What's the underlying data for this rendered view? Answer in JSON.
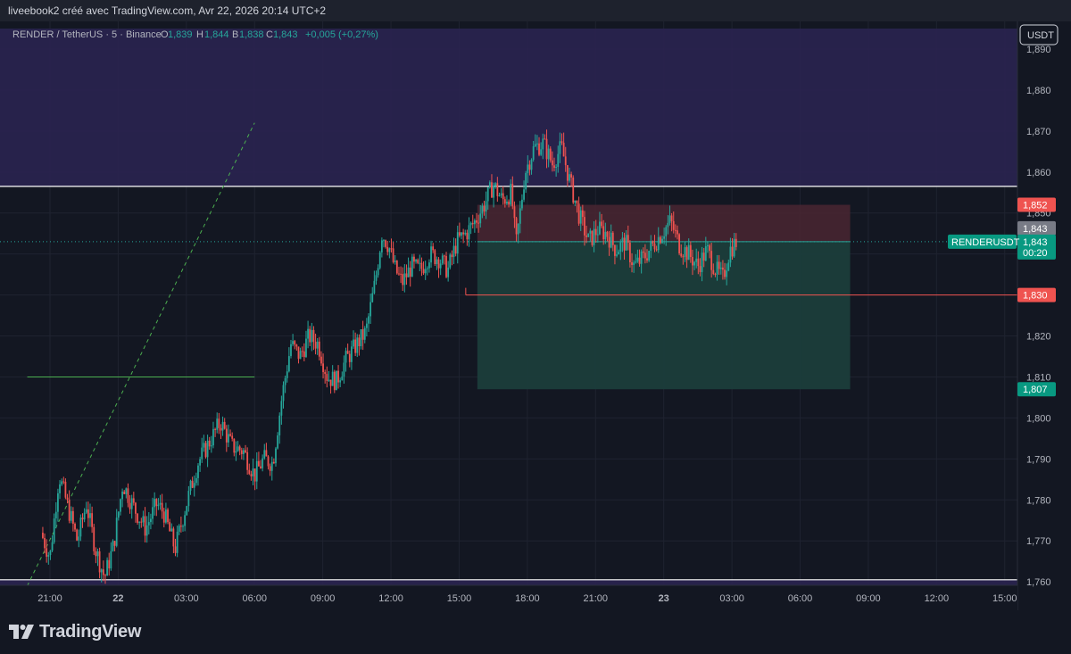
{
  "header": {
    "caption": "liveebook2 créé avec TradingView.com, Avr 22, 2026 20:14 UTC+2"
  },
  "legend": {
    "symbol": "RENDER / TetherUS · 5 · Binance",
    "o_label": "O",
    "o": "1,839",
    "h_label": "H",
    "h": "1,844",
    "b_label": "B",
    "b": "1,838",
    "c_label": "C",
    "c": "1,843",
    "change": "+0,005 (+0,27%)"
  },
  "currency_button": "USDT",
  "brand": "TradingView",
  "colors": {
    "background": "#131722",
    "up": "#26a69a",
    "down": "#ef5350",
    "zone": "#2a2450",
    "stop_box": "#4a2631",
    "target_box": "#1b3d3b"
  },
  "chart_data": {
    "type": "candlestick",
    "symbol": "RENDERUSDT",
    "interval": "5",
    "y_axis": {
      "ticks": [
        1.89,
        1.88,
        1.87,
        1.86,
        1.85,
        1.84,
        1.83,
        1.82,
        1.81,
        1.8,
        1.79,
        1.78,
        1.77,
        1.76
      ],
      "tick_labels": [
        "1,890",
        "1,880",
        "1,870",
        "1,860",
        "1,850",
        "1,840",
        "1,830",
        "1,820",
        "1,810",
        "1,800",
        "1,790",
        "1,780",
        "1,770",
        "1,760"
      ]
    },
    "x_axis": {
      "hours": [
        0,
        3,
        6,
        9,
        12,
        15,
        18,
        21,
        24,
        27,
        30,
        33,
        36,
        39,
        42
      ],
      "labels": [
        "21:00",
        "22",
        "03:00",
        "06:00",
        "09:00",
        "12:00",
        "15:00",
        "18:00",
        "21:00",
        "23",
        "03:00",
        "06:00",
        "09:00",
        "12:00",
        "15:00"
      ],
      "bold": [
        false,
        true,
        false,
        false,
        false,
        false,
        false,
        false,
        false,
        true,
        false,
        false,
        false,
        false,
        false
      ]
    },
    "price_path": [
      [
        -0.4,
        1.772
      ],
      [
        0.0,
        1.766
      ],
      [
        0.4,
        1.786
      ],
      [
        0.8,
        1.778
      ],
      [
        1.2,
        1.77
      ],
      [
        1.6,
        1.779
      ],
      [
        2.0,
        1.768
      ],
      [
        2.4,
        1.761
      ],
      [
        2.8,
        1.769
      ],
      [
        3.2,
        1.784
      ],
      [
        3.7,
        1.778
      ],
      [
        4.2,
        1.773
      ],
      [
        4.7,
        1.779
      ],
      [
        5.0,
        1.777
      ],
      [
        5.5,
        1.768
      ],
      [
        6.0,
        1.779
      ],
      [
        6.5,
        1.789
      ],
      [
        7.0,
        1.794
      ],
      [
        7.5,
        1.799
      ],
      [
        8.0,
        1.793
      ],
      [
        8.5,
        1.792
      ],
      [
        9.0,
        1.786
      ],
      [
        9.4,
        1.79
      ],
      [
        9.8,
        1.789
      ],
      [
        10.2,
        1.805
      ],
      [
        10.6,
        1.818
      ],
      [
        11.0,
        1.815
      ],
      [
        11.4,
        1.82
      ],
      [
        11.8,
        1.818
      ],
      [
        12.2,
        1.81
      ],
      [
        12.6,
        1.809
      ],
      [
        13.0,
        1.814
      ],
      [
        13.5,
        1.818
      ],
      [
        13.9,
        1.821
      ],
      [
        14.3,
        1.833
      ],
      [
        14.6,
        1.845
      ],
      [
        14.9,
        1.842
      ],
      [
        15.2,
        1.836
      ],
      [
        15.5,
        1.833
      ],
      [
        15.9,
        1.837
      ],
      [
        16.3,
        1.836
      ],
      [
        16.7,
        1.84
      ],
      [
        17.1,
        1.839
      ],
      [
        17.5,
        1.836
      ],
      [
        17.9,
        1.843
      ],
      [
        18.3,
        1.845
      ],
      [
        18.7,
        1.848
      ],
      [
        19.1,
        1.852
      ],
      [
        19.5,
        1.857
      ],
      [
        19.9,
        1.853
      ],
      [
        20.3,
        1.855
      ],
      [
        20.5,
        1.842
      ],
      [
        20.9,
        1.86
      ],
      [
        21.3,
        1.866
      ],
      [
        21.7,
        1.867
      ],
      [
        22.1,
        1.862
      ],
      [
        22.5,
        1.866
      ],
      [
        22.9,
        1.857
      ],
      [
        23.3,
        1.849
      ],
      [
        23.7,
        1.843
      ],
      [
        24.1,
        1.846
      ],
      [
        24.5,
        1.845
      ],
      [
        24.9,
        1.841
      ],
      [
        25.3,
        1.843
      ],
      [
        25.7,
        1.837
      ],
      [
        26.1,
        1.839
      ],
      [
        26.5,
        1.842
      ],
      [
        26.9,
        1.845
      ],
      [
        27.3,
        1.848
      ],
      [
        27.7,
        1.842
      ],
      [
        28.1,
        1.84
      ],
      [
        28.5,
        1.837
      ],
      [
        28.9,
        1.841
      ],
      [
        29.3,
        1.836
      ],
      [
        29.6,
        1.834
      ],
      [
        29.9,
        1.841
      ],
      [
        30.2,
        1.843
      ]
    ],
    "last_price": 1.843,
    "last_price_label": "1,843",
    "countdown": "00:20",
    "symbol_tag": "RENDERUSDT",
    "ask_label": "1,843",
    "horizontal_lines": [
      {
        "price": 1.8565,
        "color": "#ffffff"
      },
      {
        "price": 1.7605,
        "color": "#ffffff"
      }
    ],
    "support_line": {
      "price": 1.81,
      "from_hour": -1.0,
      "to_hour": 9.0,
      "color": "#4caf50"
    },
    "trend_line": {
      "from": [
        -1.0,
        1.759
      ],
      "to": [
        9.0,
        1.872
      ],
      "color": "#4caf50",
      "dashed": true
    },
    "zones": [
      {
        "price_from": 1.8565,
        "price_to": 1.895
      },
      {
        "price_from": 1.7605,
        "price_to": 1.757
      }
    ],
    "position": {
      "side": "short",
      "from_hour": 18.8,
      "to_hour": 35.2,
      "entry": 1.843,
      "stop": 1.852,
      "stop_label": "1,852",
      "target": 1.807,
      "target_label": "1,807",
      "level": 1.83,
      "level_label": "1,830"
    }
  }
}
